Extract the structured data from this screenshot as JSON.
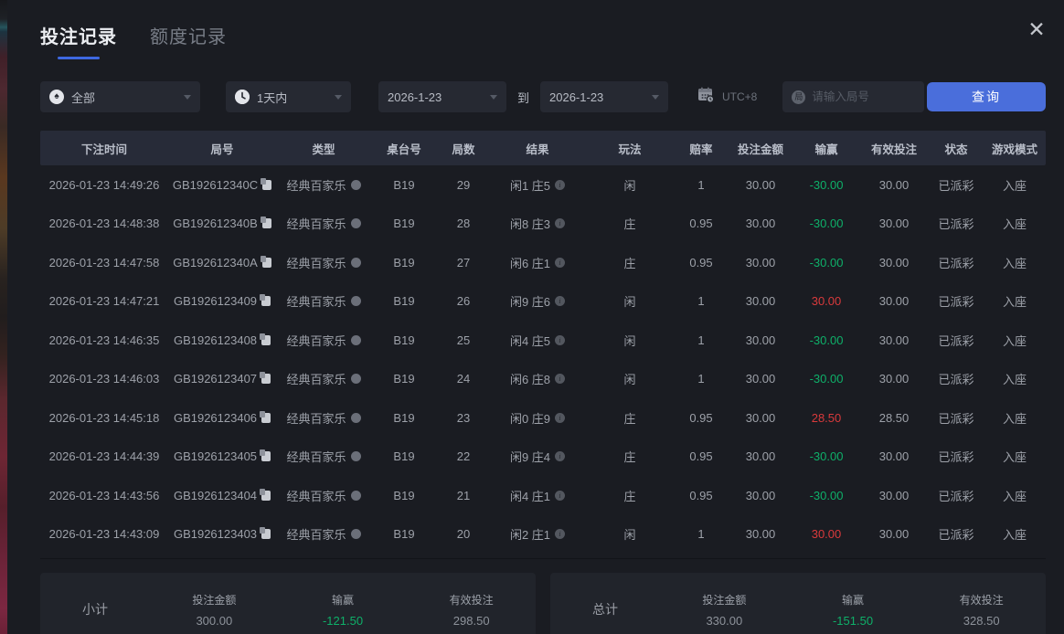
{
  "tabs": [
    {
      "label": "投注记录",
      "active": true
    },
    {
      "label": "额度记录",
      "active": false
    }
  ],
  "close_icon": "✕",
  "filters": {
    "game_type": {
      "value": "全部",
      "icon": "spade",
      "icon_glyph": "♠"
    },
    "time_range": {
      "value": "1天内",
      "icon": "clock"
    },
    "date_from": "2026-1-23",
    "to_label": "到",
    "date_to": "2026-1-23",
    "timezone": "UTC+8",
    "round_icon_glyph": "局",
    "round_placeholder": "请输入局号",
    "search_button": "查询"
  },
  "table": {
    "columns": [
      "下注时间",
      "局号",
      "类型",
      "桌台号",
      "局数",
      "结果",
      "玩法",
      "赔率",
      "投注金额",
      "输赢",
      "有效投注",
      "状态",
      "游戏模式"
    ],
    "rows": [
      {
        "time": "2026-01-23 14:49:26",
        "round_id": "GB192612340C",
        "type": "经典百家乐",
        "table_no": "B19",
        "shoe": "29",
        "result": "闲1 庄5",
        "play": "闲",
        "odds": "1",
        "bet": "30.00",
        "win": "-30.00",
        "valid": "30.00",
        "status": "已派彩",
        "mode": "入座"
      },
      {
        "time": "2026-01-23 14:48:38",
        "round_id": "GB192612340B",
        "type": "经典百家乐",
        "table_no": "B19",
        "shoe": "28",
        "result": "闲8 庄3",
        "play": "庄",
        "odds": "0.95",
        "bet": "30.00",
        "win": "-30.00",
        "valid": "30.00",
        "status": "已派彩",
        "mode": "入座"
      },
      {
        "time": "2026-01-23 14:47:58",
        "round_id": "GB192612340A",
        "type": "经典百家乐",
        "table_no": "B19",
        "shoe": "27",
        "result": "闲6 庄1",
        "play": "庄",
        "odds": "0.95",
        "bet": "30.00",
        "win": "-30.00",
        "valid": "30.00",
        "status": "已派彩",
        "mode": "入座"
      },
      {
        "time": "2026-01-23 14:47:21",
        "round_id": "GB1926123409",
        "type": "经典百家乐",
        "table_no": "B19",
        "shoe": "26",
        "result": "闲9 庄6",
        "play": "闲",
        "odds": "1",
        "bet": "30.00",
        "win": "30.00",
        "valid": "30.00",
        "status": "已派彩",
        "mode": "入座"
      },
      {
        "time": "2026-01-23 14:46:35",
        "round_id": "GB1926123408",
        "type": "经典百家乐",
        "table_no": "B19",
        "shoe": "25",
        "result": "闲4 庄5",
        "play": "闲",
        "odds": "1",
        "bet": "30.00",
        "win": "-30.00",
        "valid": "30.00",
        "status": "已派彩",
        "mode": "入座"
      },
      {
        "time": "2026-01-23 14:46:03",
        "round_id": "GB1926123407",
        "type": "经典百家乐",
        "table_no": "B19",
        "shoe": "24",
        "result": "闲6 庄8",
        "play": "闲",
        "odds": "1",
        "bet": "30.00",
        "win": "-30.00",
        "valid": "30.00",
        "status": "已派彩",
        "mode": "入座"
      },
      {
        "time": "2026-01-23 14:45:18",
        "round_id": "GB1926123406",
        "type": "经典百家乐",
        "table_no": "B19",
        "shoe": "23",
        "result": "闲0 庄9",
        "play": "庄",
        "odds": "0.95",
        "bet": "30.00",
        "win": "28.50",
        "valid": "28.50",
        "status": "已派彩",
        "mode": "入座"
      },
      {
        "time": "2026-01-23 14:44:39",
        "round_id": "GB1926123405",
        "type": "经典百家乐",
        "table_no": "B19",
        "shoe": "22",
        "result": "闲9 庄4",
        "play": "庄",
        "odds": "0.95",
        "bet": "30.00",
        "win": "-30.00",
        "valid": "30.00",
        "status": "已派彩",
        "mode": "入座"
      },
      {
        "time": "2026-01-23 14:43:56",
        "round_id": "GB1926123404",
        "type": "经典百家乐",
        "table_no": "B19",
        "shoe": "21",
        "result": "闲4 庄1",
        "play": "庄",
        "odds": "0.95",
        "bet": "30.00",
        "win": "-30.00",
        "valid": "30.00",
        "status": "已派彩",
        "mode": "入座"
      },
      {
        "time": "2026-01-23 14:43:09",
        "round_id": "GB1926123403",
        "type": "经典百家乐",
        "table_no": "B19",
        "shoe": "20",
        "result": "闲2 庄1",
        "play": "闲",
        "odds": "1",
        "bet": "30.00",
        "win": "30.00",
        "valid": "30.00",
        "status": "已派彩",
        "mode": "入座"
      }
    ]
  },
  "summary": {
    "subtotal": {
      "label": "小计",
      "bet_label": "投注金额",
      "bet": "300.00",
      "win_label": "输赢",
      "win": "-121.50",
      "valid_label": "有效投注",
      "valid": "298.50"
    },
    "total": {
      "label": "总计",
      "bet_label": "投注金额",
      "bet": "330.00",
      "win_label": "输赢",
      "win": "-151.50",
      "valid_label": "有效投注",
      "valid": "328.50"
    }
  },
  "colors": {
    "accent_blue": "#4a6edb",
    "win_positive_red": "#d93a3c",
    "win_negative_green": "#0eb069",
    "header_bg": "#272b38",
    "modal_bg": "#1a1c22"
  }
}
